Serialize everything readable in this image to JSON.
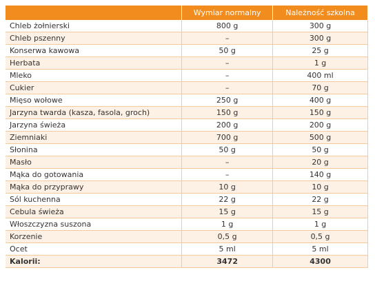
{
  "table": {
    "header": [
      "",
      "Wymiar normalny",
      "Należność szkolna"
    ],
    "rows": [
      [
        "Chleb żołnierski",
        "800 g",
        "300 g"
      ],
      [
        "Chleb pszenny",
        "–",
        "300 g"
      ],
      [
        "Konserwa kawowa",
        "50 g",
        "25 g"
      ],
      [
        "Herbata",
        "–",
        "1 g"
      ],
      [
        "Mleko",
        "–",
        "400 ml"
      ],
      [
        "Cukier",
        "–",
        "70 g"
      ],
      [
        "Mięso wołowe",
        "250 g",
        "400 g"
      ],
      [
        "Jarzyna twarda (kasza, fasola, groch)",
        "150 g",
        "150 g"
      ],
      [
        "Jarzyna świeża",
        "200 g",
        "200 g"
      ],
      [
        "Ziemniaki",
        "700 g",
        "500 g"
      ],
      [
        "Słonina",
        "50 g",
        "50 g"
      ],
      [
        "Masło",
        "–",
        "20 g"
      ],
      [
        "Mąka do gotowania",
        "–",
        "140 g"
      ],
      [
        "Mąka do przyprawy",
        "10 g",
        "10 g"
      ],
      [
        "Sól kuchenna",
        "22 g",
        "22 g"
      ],
      [
        "Cebula świeża",
        "15 g",
        "15 g"
      ],
      [
        "Włoszczyzna suszona",
        "1 g",
        "1 g"
      ],
      [
        "Korzenie",
        "0,5 g",
        "0,5 g"
      ],
      [
        "Ocet",
        "5 ml",
        "5 ml"
      ]
    ],
    "total": [
      "Kalorii:",
      "3472",
      "4300"
    ]
  }
}
